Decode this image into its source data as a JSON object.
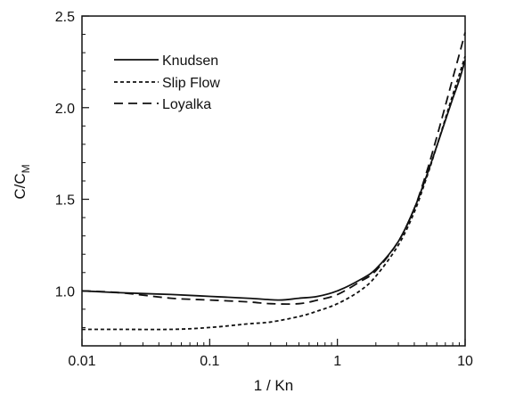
{
  "chart_data": {
    "type": "line",
    "xlabel": "1 / Kn",
    "ylabel": "C/C",
    "ylabel_subscript": "M",
    "xscale": "log",
    "xlim": [
      0.01,
      10
    ],
    "ylim": [
      0.7,
      2.5
    ],
    "x_ticks": [
      {
        "value": 0.01,
        "label": "0.01"
      },
      {
        "value": 0.1,
        "label": "0.1"
      },
      {
        "value": 1,
        "label": "1"
      },
      {
        "value": 10,
        "label": "10"
      }
    ],
    "y_ticks": [
      {
        "value": 1.0,
        "label": "1.0"
      },
      {
        "value": 1.5,
        "label": "1.5"
      },
      {
        "value": 2.0,
        "label": "2.0"
      },
      {
        "value": 2.5,
        "label": "2.5"
      }
    ],
    "grid": false,
    "legend_position": "top-left",
    "series": [
      {
        "name": "Knudsen",
        "style": "solid",
        "x": [
          0.01,
          0.02,
          0.05,
          0.1,
          0.2,
          0.35,
          0.5,
          0.7,
          1.0,
          1.5,
          2.0,
          3.0,
          4.0,
          5.0,
          6.0,
          7.0,
          8.0,
          9.0,
          10.0
        ],
        "y": [
          1.0,
          0.99,
          0.98,
          0.97,
          0.96,
          0.95,
          0.96,
          0.97,
          1.0,
          1.06,
          1.12,
          1.27,
          1.45,
          1.63,
          1.79,
          1.93,
          2.05,
          2.15,
          2.26
        ]
      },
      {
        "name": "Slip Flow",
        "style": "short-dash",
        "x": [
          0.01,
          0.02,
          0.05,
          0.1,
          0.2,
          0.3,
          0.5,
          0.7,
          1.0,
          1.5,
          2.0,
          3.0,
          4.0,
          5.0,
          6.0,
          7.0,
          8.0,
          9.0,
          10.0
        ],
        "y": [
          0.79,
          0.79,
          0.79,
          0.8,
          0.82,
          0.83,
          0.86,
          0.89,
          0.93,
          1.0,
          1.08,
          1.25,
          1.43,
          1.62,
          1.79,
          1.94,
          2.07,
          2.18,
          2.28
        ]
      },
      {
        "name": "Loyalka",
        "style": "long-dash",
        "x": [
          0.01,
          0.02,
          0.05,
          0.1,
          0.2,
          0.3,
          0.5,
          0.7,
          1.0,
          1.5,
          2.0,
          3.0,
          4.0,
          5.0,
          6.0,
          7.0,
          8.0,
          9.0,
          10.0
        ],
        "y": [
          1.0,
          0.99,
          0.96,
          0.95,
          0.94,
          0.93,
          0.93,
          0.95,
          0.98,
          1.05,
          1.11,
          1.27,
          1.45,
          1.65,
          1.84,
          2.01,
          2.16,
          2.29,
          2.41
        ]
      }
    ]
  }
}
